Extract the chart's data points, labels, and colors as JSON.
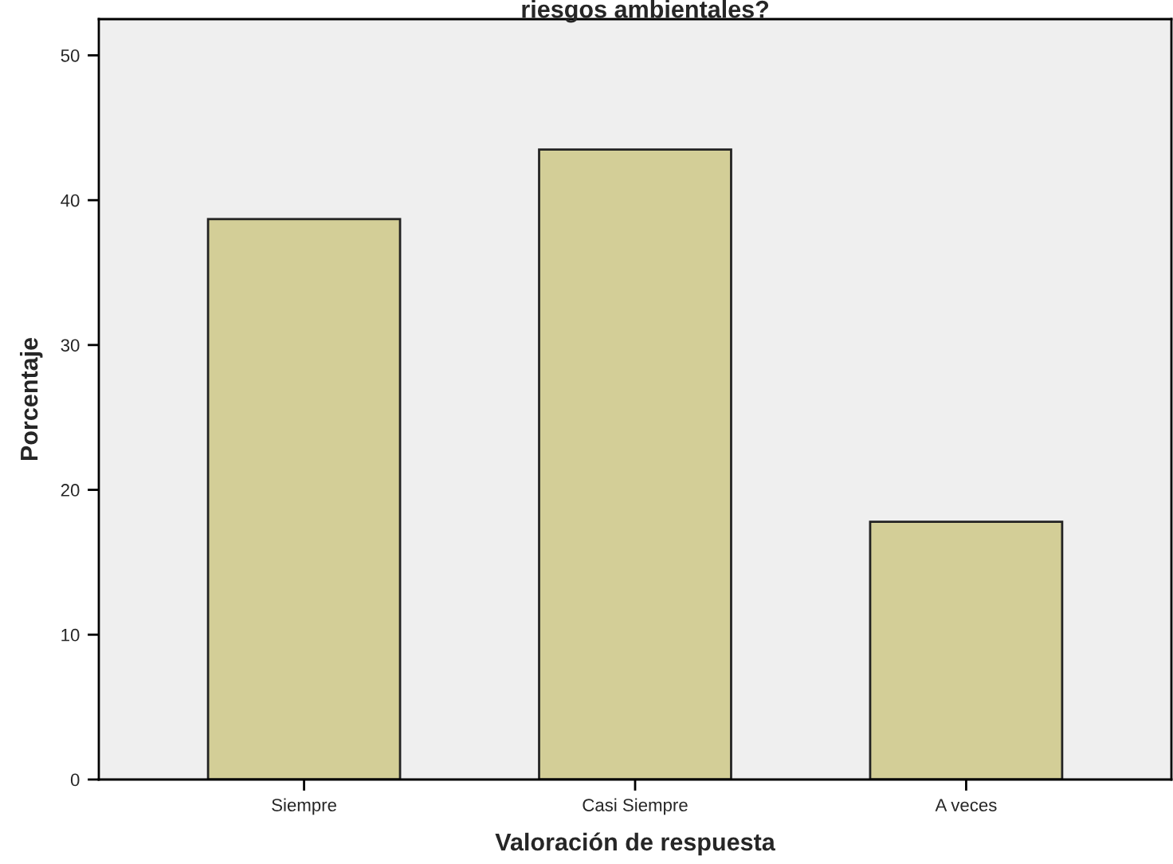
{
  "chart_data": {
    "type": "bar",
    "title": "riesgos ambientales?",
    "xlabel": "Valoración de respuesta",
    "ylabel": "Porcentaje",
    "categories": [
      "Siempre",
      "Casi Siempre",
      "A veces"
    ],
    "values": [
      38.7,
      43.5,
      17.8
    ],
    "color": "#d3ce97",
    "ylim": [
      0,
      52.5
    ],
    "yticks": [
      0,
      10,
      20,
      30,
      40,
      50
    ],
    "grid": false
  }
}
